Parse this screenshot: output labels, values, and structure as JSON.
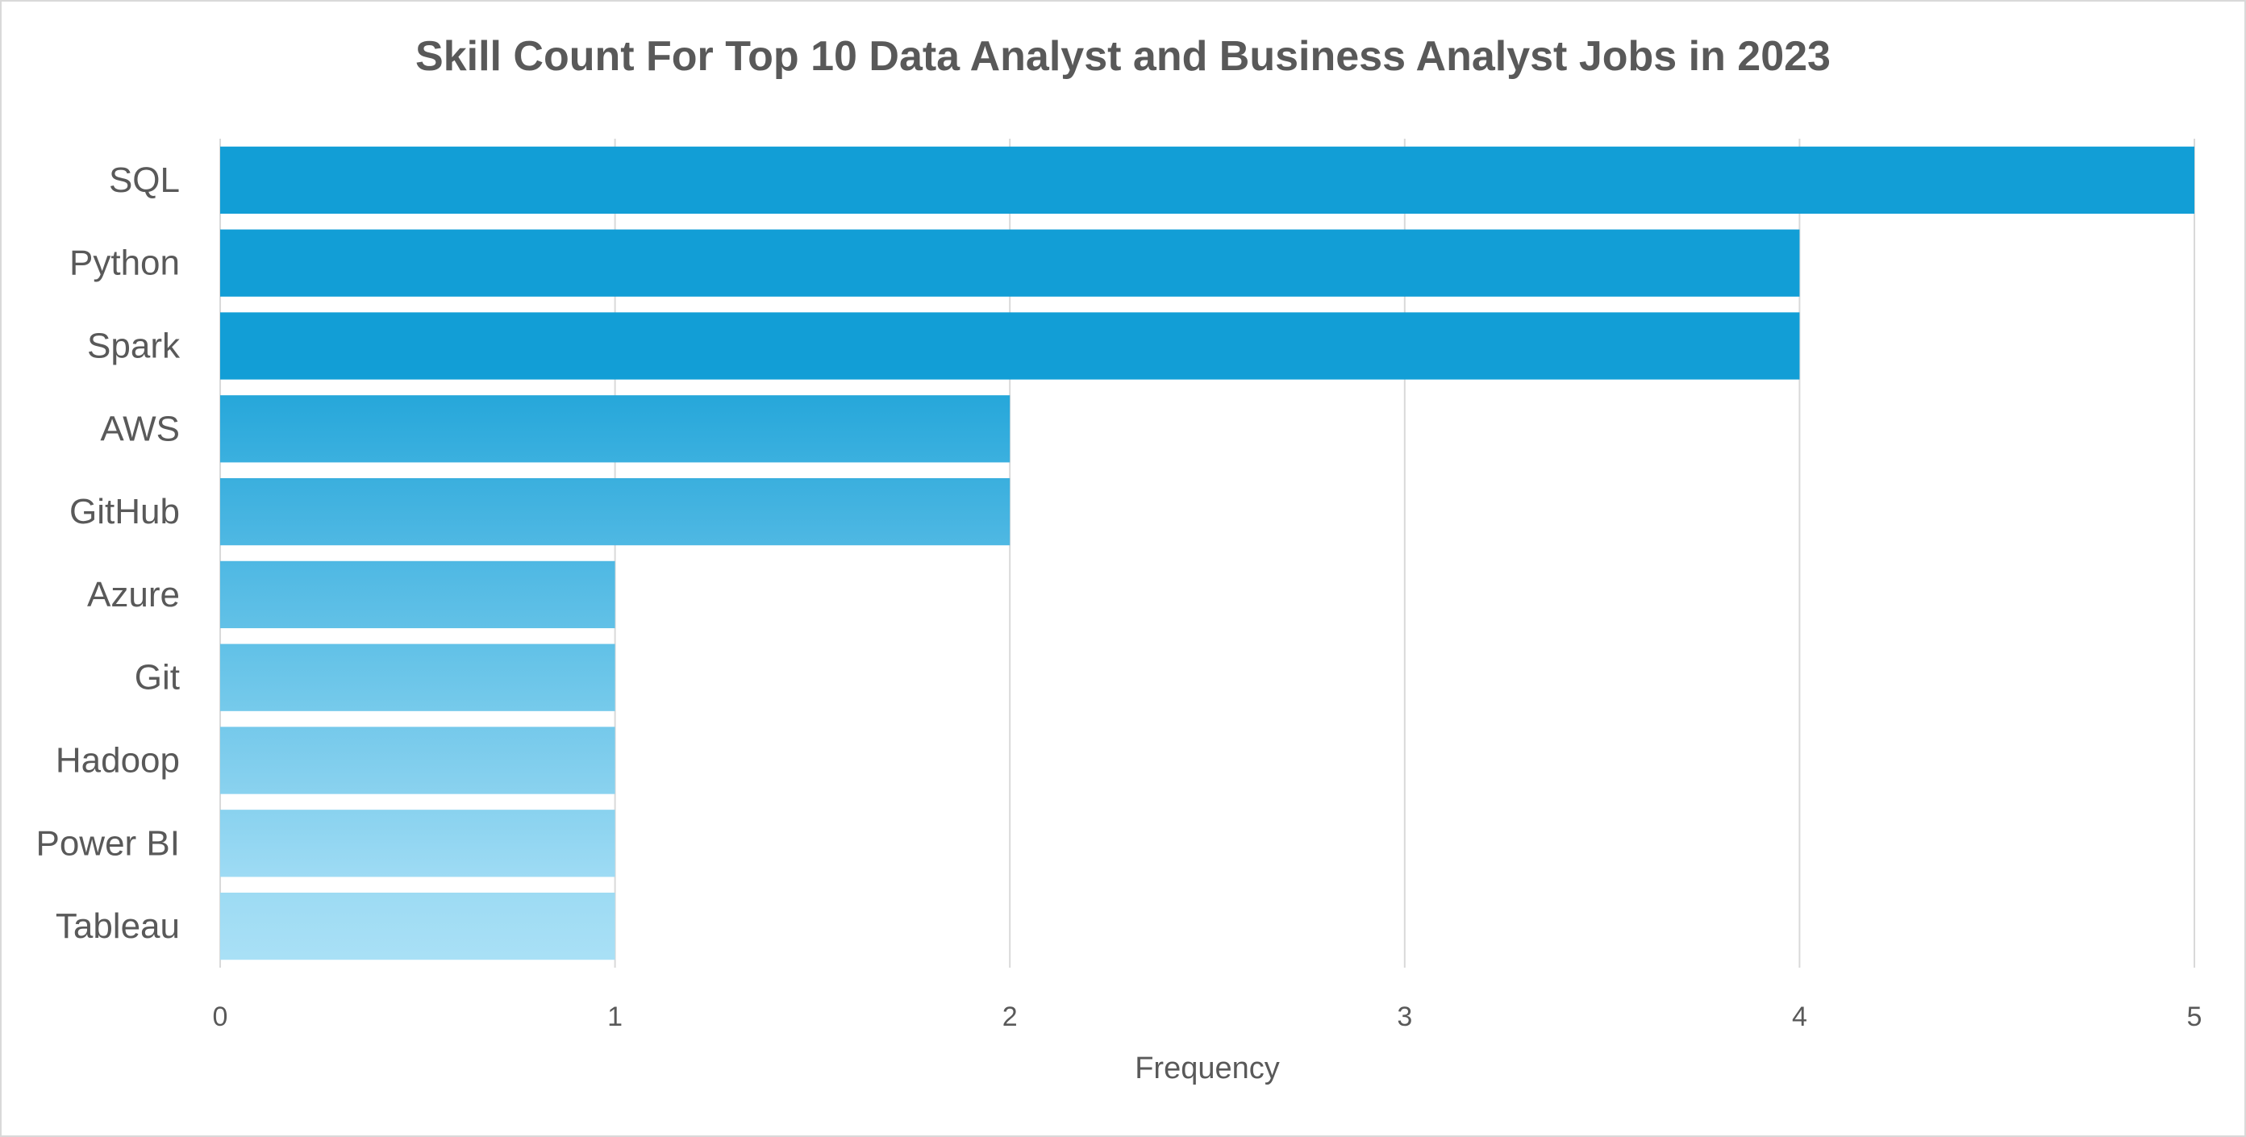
{
  "chart_data": {
    "type": "bar",
    "orientation": "horizontal",
    "title": "Skill Count For Top 10 Data Analyst and Business Analyst Jobs in 2023",
    "xlabel": "Frequency",
    "ylabel": "",
    "categories": [
      "SQL",
      "Python",
      "Spark",
      "AWS",
      "GitHub",
      "Azure",
      "Git",
      "Hadoop",
      "Power BI",
      "Tableau"
    ],
    "values": [
      5,
      4,
      4,
      2,
      2,
      1,
      1,
      1,
      1,
      1
    ],
    "xlim": [
      0,
      5
    ],
    "xticks": [
      "0",
      "1",
      "2",
      "3",
      "4",
      "5"
    ],
    "grid": "vertical",
    "legend": "none",
    "colors": {
      "bar_top": "#129ed6",
      "bar_bottom": "#a9e0f6",
      "grid": "#d9d9d9",
      "text": "#595959",
      "border": "#d9d9d9"
    }
  }
}
